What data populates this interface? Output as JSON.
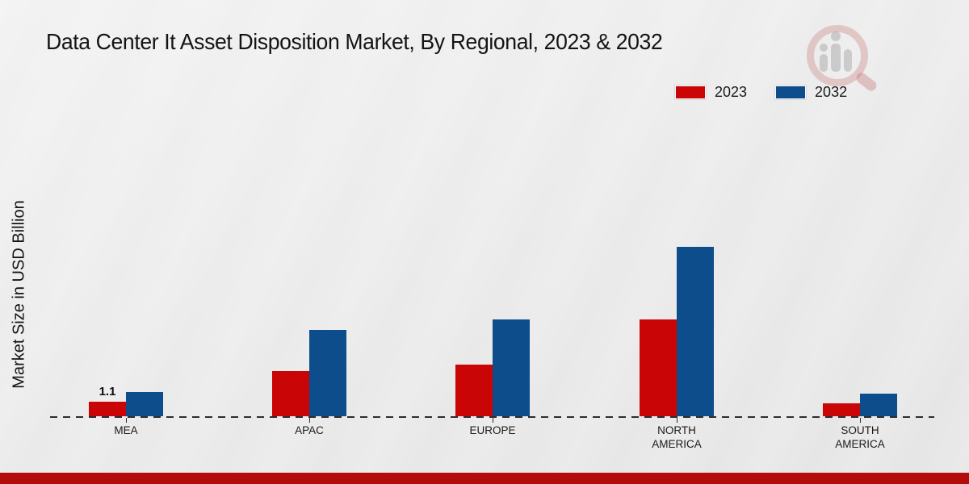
{
  "chart_data": {
    "type": "bar",
    "title": "Data Center It Asset Disposition Market, By Regional, 2023 & 2032",
    "ylabel": "Market Size in USD Billion",
    "xlabel": "",
    "categories": [
      "MEA",
      "APAC",
      "EUROPE",
      "NORTH AMERICA",
      "SOUTH AMERICA"
    ],
    "series": [
      {
        "name": "2023",
        "color": "#c90505",
        "values": [
          1.1,
          3.4,
          3.9,
          7.3,
          1.0
        ],
        "labels": [
          "1.1",
          "",
          "",
          "",
          ""
        ]
      },
      {
        "name": "2032",
        "color": "#0e4d8c",
        "values": [
          1.8,
          6.5,
          7.3,
          12.8,
          1.7
        ],
        "labels": [
          "",
          "",
          "",
          "",
          ""
        ]
      }
    ],
    "ylim": [
      0,
      14
    ],
    "grid": false,
    "y_axis_ticks_visible": false,
    "legend_position": "top-right",
    "baseline_style": "dashed"
  },
  "watermark": {
    "icon": "magnifier-analytics-logo"
  },
  "footer": {
    "accent_color": "#b40b0b"
  }
}
